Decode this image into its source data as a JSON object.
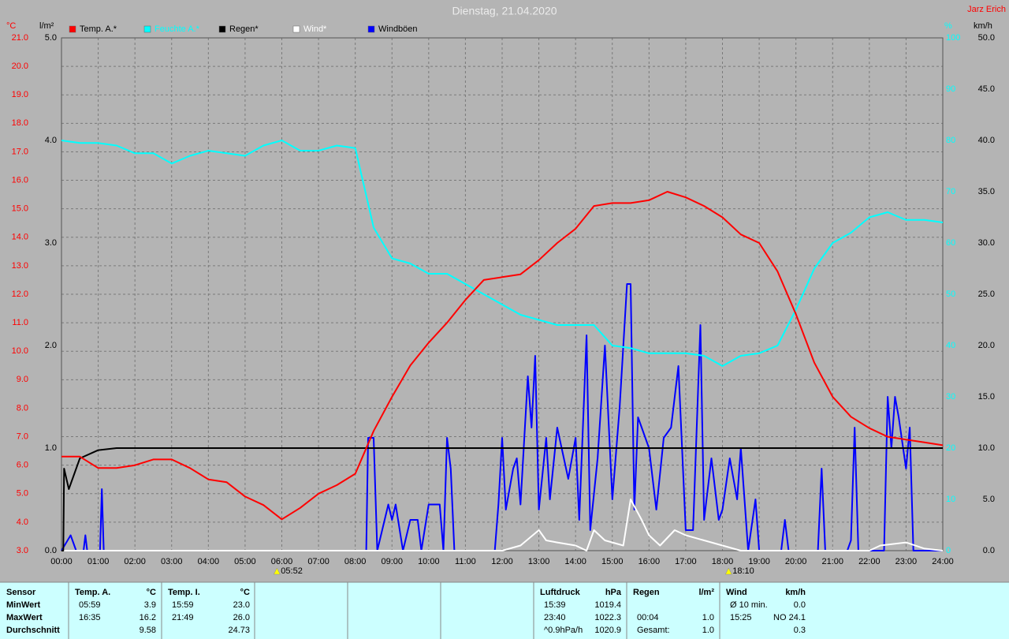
{
  "chart_data": {
    "type": "line",
    "title": "Dienstag, 21.04.2020",
    "author": "Jarz Erich",
    "axis_units": {
      "y": "°C",
      "y3": "l/m²",
      "y2": "%",
      "y4": "km/h"
    },
    "axis_colors": {
      "y": "#ff0000",
      "y3": "#000000",
      "y2": "#00ffff",
      "y4": "#000000"
    },
    "grid": true,
    "xlim": [
      0,
      24
    ],
    "xticks": [
      {
        "value": 0,
        "label": "00:00"
      },
      {
        "value": 1,
        "label": "01:00"
      },
      {
        "value": 2,
        "label": "02:00"
      },
      {
        "value": 3,
        "label": "03:00"
      },
      {
        "value": 4,
        "label": "04:00"
      },
      {
        "value": 5,
        "label": "05:00"
      },
      {
        "value": 6,
        "label": "06:00"
      },
      {
        "value": 7,
        "label": "07:00"
      },
      {
        "value": 8,
        "label": "08:00"
      },
      {
        "value": 9,
        "label": "09:00"
      },
      {
        "value": 10,
        "label": "10:00"
      },
      {
        "value": 11,
        "label": "11:00"
      },
      {
        "value": 12,
        "label": "12:00"
      },
      {
        "value": 13,
        "label": "13:00"
      },
      {
        "value": 14,
        "label": "14:00"
      },
      {
        "value": 15,
        "label": "15:00"
      },
      {
        "value": 16,
        "label": "16:00"
      },
      {
        "value": 17,
        "label": "17:00"
      },
      {
        "value": 18,
        "label": "18:00"
      },
      {
        "value": 19,
        "label": "19:00"
      },
      {
        "value": 20,
        "label": "20:00"
      },
      {
        "value": 21,
        "label": "21:00"
      },
      {
        "value": 22,
        "label": "22:00"
      },
      {
        "value": 23,
        "label": "23:00"
      },
      {
        "value": 24,
        "label": "24:00"
      }
    ],
    "ylim": [
      3,
      21
    ],
    "yticks": [
      {
        "value": 3,
        "label": "3.0"
      },
      {
        "value": 4,
        "label": "4.0"
      },
      {
        "value": 5,
        "label": "5.0"
      },
      {
        "value": 6,
        "label": "6.0"
      },
      {
        "value": 7,
        "label": "7.0"
      },
      {
        "value": 8,
        "label": "8.0"
      },
      {
        "value": 9,
        "label": "9.0"
      },
      {
        "value": 10,
        "label": "10.0"
      },
      {
        "value": 11,
        "label": "11.0"
      },
      {
        "value": 12,
        "label": "12.0"
      },
      {
        "value": 13,
        "label": "13.0"
      },
      {
        "value": 14,
        "label": "14.0"
      },
      {
        "value": 15,
        "label": "15.0"
      },
      {
        "value": 16,
        "label": "16.0"
      },
      {
        "value": 17,
        "label": "17.0"
      },
      {
        "value": 18,
        "label": "18.0"
      },
      {
        "value": 19,
        "label": "19.0"
      },
      {
        "value": 20,
        "label": "20.0"
      },
      {
        "value": 21,
        "label": "21.0"
      }
    ],
    "y3lim": [
      0,
      5
    ],
    "y3ticks": [
      {
        "value": 0,
        "label": "0.0"
      },
      {
        "value": 1,
        "label": "1.0"
      },
      {
        "value": 2,
        "label": "2.0"
      },
      {
        "value": 3,
        "label": "3.0"
      },
      {
        "value": 4,
        "label": "4.0"
      },
      {
        "value": 5,
        "label": "5.0"
      }
    ],
    "y2lim": [
      0,
      100
    ],
    "y2ticks": [
      0,
      10,
      20,
      30,
      40,
      50,
      60,
      70,
      80,
      90,
      100
    ],
    "y4lim": [
      0,
      50
    ],
    "y4ticks": [
      {
        "value": 0,
        "label": "0.0"
      },
      {
        "value": 5,
        "label": "5.0"
      },
      {
        "value": 10,
        "label": "10.0"
      },
      {
        "value": 15,
        "label": "15.0"
      },
      {
        "value": 20,
        "label": "20.0"
      },
      {
        "value": 25,
        "label": "25.0"
      },
      {
        "value": 30,
        "label": "30.0"
      },
      {
        "value": 35,
        "label": "35.0"
      },
      {
        "value": 40,
        "label": "40.0"
      },
      {
        "value": 45,
        "label": "45.0"
      },
      {
        "value": 50,
        "label": "50.0"
      }
    ],
    "series": [
      {
        "name": "Temp. A.*",
        "color": "#ff0000",
        "axis": "y",
        "x": [
          0,
          0.5,
          1,
          1.5,
          2,
          2.5,
          3,
          3.5,
          4,
          4.5,
          5,
          5.5,
          6,
          6.5,
          7,
          7.5,
          8,
          8.5,
          9,
          9.5,
          10,
          10.5,
          11,
          11.5,
          12,
          12.5,
          13,
          13.5,
          14,
          14.5,
          15,
          15.5,
          16,
          16.5,
          17,
          17.5,
          18,
          18.5,
          19,
          19.5,
          20,
          20.5,
          21,
          21.5,
          22,
          22.5,
          23,
          23.5,
          24
        ],
        "values": [
          6.3,
          6.3,
          5.9,
          5.9,
          6.0,
          6.2,
          6.2,
          5.9,
          5.5,
          5.4,
          4.9,
          4.6,
          4.1,
          4.5,
          5.0,
          5.3,
          5.7,
          7.2,
          8.4,
          9.5,
          10.3,
          11.0,
          11.8,
          12.5,
          12.6,
          12.7,
          13.2,
          13.8,
          14.3,
          15.1,
          15.2,
          15.2,
          15.3,
          15.6,
          15.4,
          15.1,
          14.7,
          14.1,
          13.8,
          12.8,
          11.3,
          9.6,
          8.4,
          7.7,
          7.3,
          7.0,
          6.9,
          6.8,
          6.7
        ]
      },
      {
        "name": "Feuchte A.*",
        "color": "#00ffff",
        "axis": "y2",
        "x": [
          0,
          0.5,
          1,
          1.5,
          2,
          2.5,
          3,
          3.5,
          4,
          4.5,
          5,
          5.5,
          6,
          6.5,
          7,
          7.5,
          8,
          8.5,
          9,
          9.5,
          10,
          10.5,
          11,
          11.5,
          12,
          12.5,
          13,
          13.5,
          14,
          14.5,
          15,
          15.5,
          16,
          16.5,
          17,
          17.5,
          18,
          18.5,
          19,
          19.5,
          20,
          20.5,
          21,
          21.5,
          22,
          22.5,
          23,
          23.5,
          24
        ],
        "values": [
          80,
          79.5,
          79.5,
          79,
          77.5,
          77.5,
          75.5,
          77,
          78,
          77.5,
          77,
          79,
          80,
          78,
          78,
          79,
          78.5,
          63,
          57,
          56,
          54,
          54,
          52,
          50,
          48,
          46,
          45,
          44,
          44,
          44,
          40,
          39.5,
          38.5,
          38.5,
          38.5,
          38,
          36,
          38,
          38.5,
          40,
          47,
          55,
          60,
          62,
          65,
          66,
          64.5,
          64.5,
          64
        ]
      },
      {
        "name": "Regen*",
        "color": "#000000",
        "axis": "y3",
        "x": [
          0,
          0.05,
          0.07,
          0.2,
          0.5,
          1,
          1.5,
          24
        ],
        "values": [
          0,
          0,
          0.8,
          0.6,
          0.9,
          0.98,
          1.0,
          1.0
        ]
      },
      {
        "name": "Wind*",
        "color": "#ffffff",
        "axis": "y4",
        "x": [
          0,
          12,
          12.5,
          13,
          13.2,
          13.5,
          14,
          14.3,
          14.5,
          14.8,
          15,
          15.3,
          15.5,
          15.8,
          16,
          16.3,
          16.7,
          17,
          17.5,
          18,
          18.5,
          22,
          22.3,
          23,
          23.5,
          24
        ],
        "values": [
          0,
          0,
          0.5,
          2,
          1,
          0.8,
          0.5,
          0,
          2,
          1,
          0.8,
          0.5,
          5,
          3,
          1.5,
          0.5,
          2,
          1.5,
          1,
          0.5,
          0,
          0,
          0.5,
          0.8,
          0.2,
          0
        ]
      },
      {
        "name": "Windböen",
        "color": "#0000ff",
        "axis": "y4",
        "x": [
          0,
          0.25,
          0.4,
          0.6,
          0.65,
          0.7,
          1.05,
          1.1,
          1.15,
          8.3,
          8.35,
          8.5,
          8.6,
          8.9,
          9,
          9.1,
          9.3,
          9.5,
          9.7,
          9.8,
          10,
          10.3,
          10.4,
          10.5,
          10.6,
          10.7,
          11.8,
          11.9,
          12,
          12.1,
          12.3,
          12.4,
          12.5,
          12.7,
          12.8,
          12.9,
          13,
          13.2,
          13.3,
          13.5,
          13.8,
          14,
          14.1,
          14.3,
          14.4,
          14.6,
          14.8,
          15,
          15.2,
          15.4,
          15.5,
          15.6,
          15.7,
          16,
          16.2,
          16.4,
          16.6,
          16.8,
          17,
          17.2,
          17.4,
          17.5,
          17.7,
          17.9,
          18,
          18.2,
          18.4,
          18.5,
          18.7,
          18.9,
          19,
          19.6,
          19.7,
          19.8,
          20.6,
          20.7,
          20.8,
          21.4,
          21.5,
          21.6,
          21.7,
          22.4,
          22.5,
          22.6,
          22.7,
          22.8,
          23,
          23.1,
          23.2,
          24
        ],
        "values": [
          0,
          1.5,
          0,
          0,
          1.5,
          0,
          0,
          6,
          0,
          0,
          11,
          11,
          0,
          4.5,
          3,
          4.5,
          0,
          3,
          3,
          0,
          4.5,
          4.5,
          0,
          11,
          8,
          0,
          0,
          4.5,
          11,
          4,
          8,
          9,
          4.5,
          17,
          12,
          19,
          4,
          11,
          5,
          12,
          7,
          11,
          3,
          21,
          2,
          9,
          20,
          5,
          14,
          26,
          26,
          4,
          13,
          10,
          4,
          11,
          12,
          18,
          2,
          2,
          22,
          3,
          9,
          3,
          4,
          9,
          5,
          10,
          0,
          5,
          0,
          0,
          3,
          0,
          0,
          8,
          0,
          0,
          1,
          12,
          0,
          0,
          15,
          10,
          15,
          13,
          8,
          12,
          0,
          0
        ]
      }
    ],
    "annotations": [
      {
        "x": 5.867,
        "label": "05:52"
      },
      {
        "x": 18.167,
        "label": "18:10"
      }
    ]
  },
  "stats_table": {
    "row_labels": [
      "Sensor",
      "MinWert",
      "MaxWert",
      "Durchschnitt"
    ],
    "columns": [
      {
        "header": "Temp. A.",
        "unit": "°C",
        "cells": [
          [
            "05:59",
            "3.9"
          ],
          [
            "16:35",
            "16.2"
          ],
          [
            null,
            "9.58"
          ]
        ]
      },
      {
        "header": "Temp. I.",
        "unit": "°C",
        "cells": [
          [
            "15:59",
            "23.0"
          ],
          [
            "21:49",
            "26.0"
          ],
          [
            null,
            "24.73"
          ]
        ]
      },
      {
        "header": "Luftdruck",
        "unit": "hPa",
        "cells": [
          [
            "15:39",
            "1019.4"
          ],
          [
            "23:40",
            "1022.3"
          ],
          [
            "^0.9hPa/h",
            "1020.9"
          ]
        ]
      },
      {
        "header": "Regen",
        "unit": "l/m²",
        "cells": [
          [
            null,
            null
          ],
          [
            "00:04",
            "1.0"
          ],
          [
            "Gesamt:",
            "1.0"
          ]
        ]
      },
      {
        "header": "Wind",
        "unit": "km/h",
        "cells": [
          [
            "Ø 10 min.",
            "0.0"
          ],
          [
            "15:25",
            "NO 24.1"
          ],
          [
            null,
            "0.3"
          ]
        ]
      }
    ]
  }
}
